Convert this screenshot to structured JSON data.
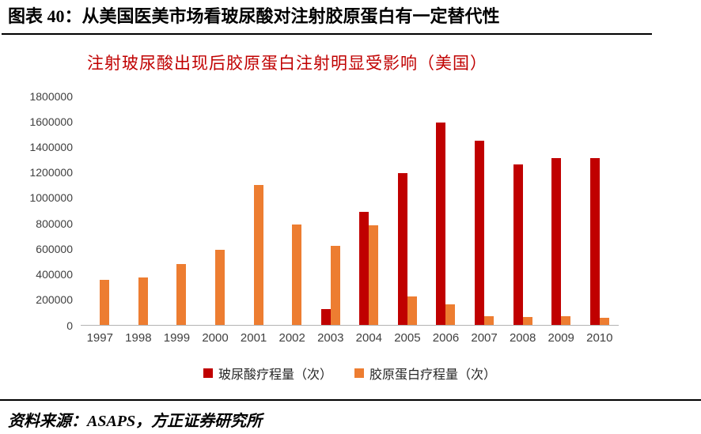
{
  "header": {
    "title": "图表 40：从美国医美市场看玻尿酸对注射胶原蛋白有一定替代性"
  },
  "footer": {
    "source": "资料来源：ASAPS，方正证券研究所"
  },
  "colors": {
    "hyaluronic_series": "#c00000",
    "collagen_series": "#ed7d31",
    "chart_title_text": "#c00000",
    "axis_text": "#404040"
  },
  "chart_data": {
    "type": "bar",
    "title": "注射玻尿酸出现后胶原蛋白注射明显受影响（美国）",
    "categories": [
      "1997",
      "1998",
      "1999",
      "2000",
      "2001",
      "2002",
      "2003",
      "2004",
      "2005",
      "2006",
      "2007",
      "2008",
      "2009",
      "2010"
    ],
    "series": [
      {
        "id": "hyaluronic",
        "name": "玻尿酸疗程量（次）",
        "color": "#c00000",
        "values": [
          0,
          0,
          0,
          0,
          0,
          0,
          120000,
          890000,
          1190000,
          1590000,
          1450000,
          1260000,
          1310000,
          1310000
        ]
      },
      {
        "id": "collagen",
        "name": "胶原蛋白疗程量（次）",
        "color": "#ed7d31",
        "values": [
          350000,
          370000,
          475000,
          590000,
          1100000,
          790000,
          620000,
          780000,
          220000,
          160000,
          65000,
          60000,
          65000,
          55000
        ]
      }
    ],
    "xlabel": "",
    "ylabel": "",
    "ylim": [
      0,
      1800000
    ],
    "ytick_step": 200000,
    "grid": false,
    "legend_position": "bottom"
  }
}
